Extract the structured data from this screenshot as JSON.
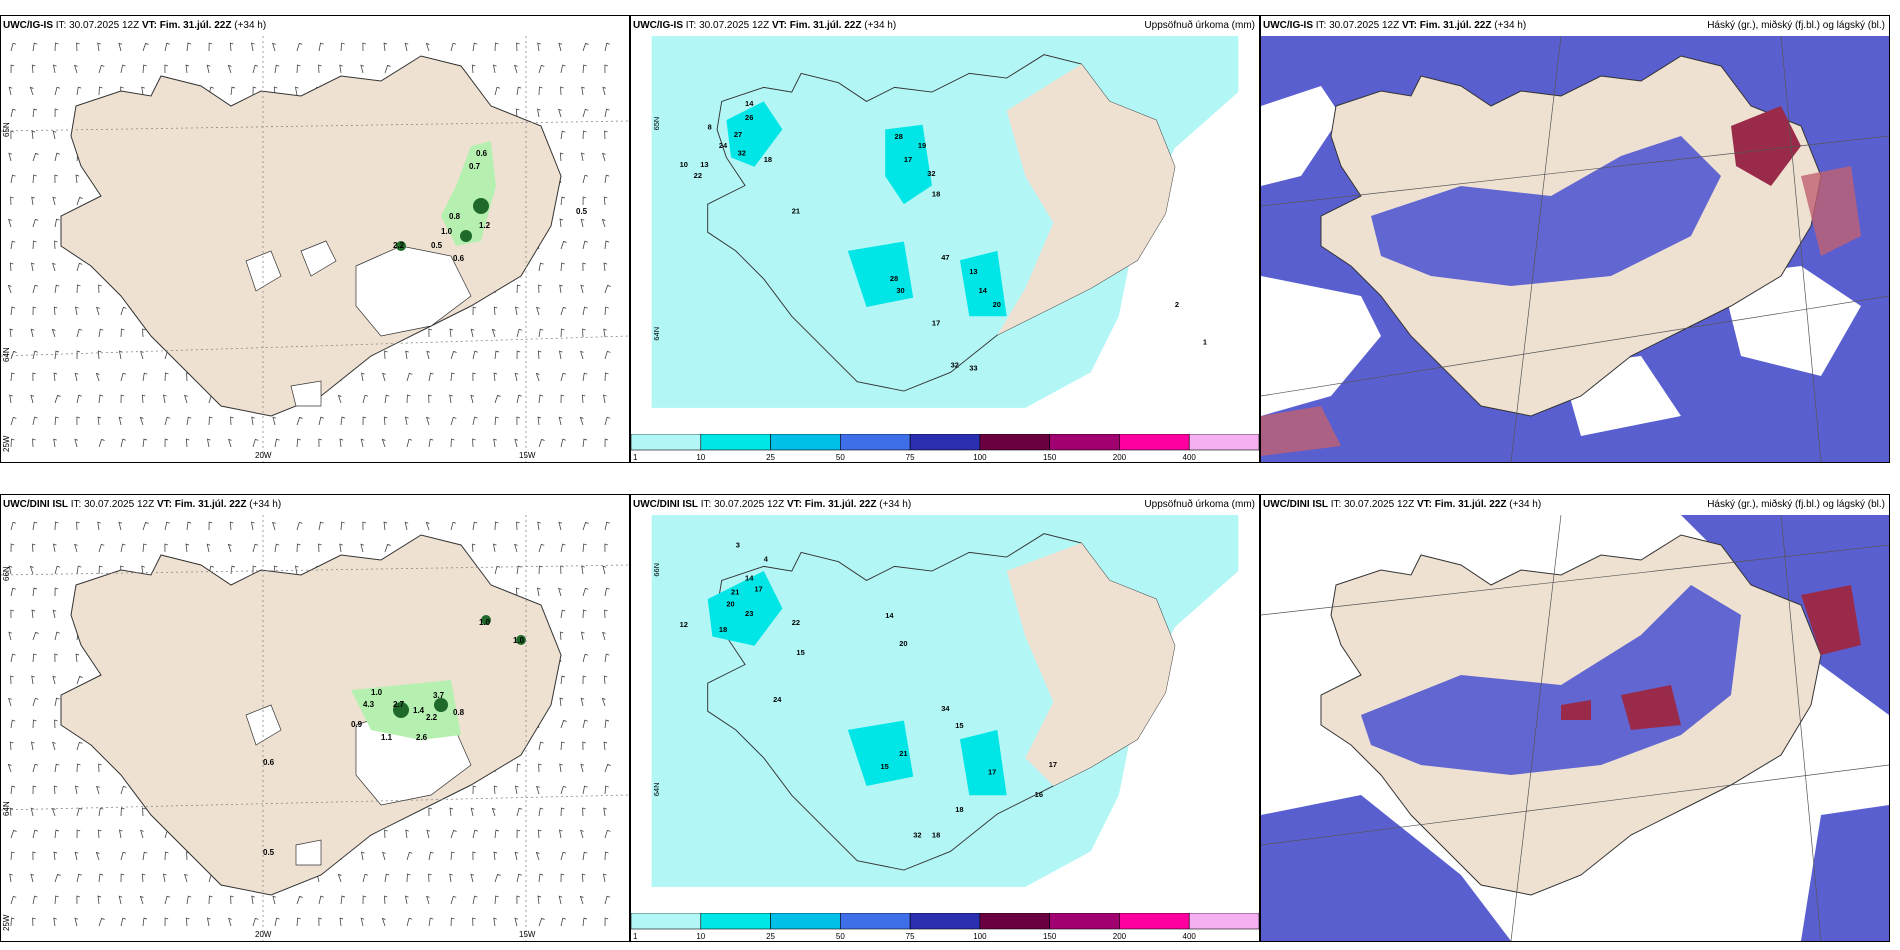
{
  "colors": {
    "land": "#efe1d2",
    "sea_precip": "#b3f6f6",
    "precip_10": "#00e6e6",
    "cloud_low": "#5a5fd0",
    "cloud_high": "#9a2a4a",
    "green_light": "#b6f0b0",
    "green_dark": "#1f6a2a"
  },
  "panels": [
    {
      "model": "UWC/IG-IS",
      "it_label": "IT:",
      "it_value": "30.07.2025 12Z",
      "vt_label": "VT:",
      "vt_value": "Fim. 31.júl. 22Z",
      "lead": "(+34 h)",
      "right_title": "",
      "lat_labels": [
        "65N",
        "64N",
        "25W"
      ],
      "lon_labels": [
        "20W",
        "15W"
      ],
      "values": [
        "0.6",
        "0.7",
        "0.8",
        "1.0",
        "1.2",
        "0.5",
        "0.6",
        "2.2",
        "0.5"
      ]
    },
    {
      "model": "UWC/IG-IS",
      "it_label": "IT:",
      "it_value": "30.07.2025 12Z",
      "vt_label": "VT:",
      "vt_value": "Fim. 31.júl. 22Z",
      "lead": "(+34 h)",
      "right_title": "Uppsöfnuð úrkoma (mm)",
      "lat_labels": [
        "65N",
        "64N"
      ],
      "values": [
        "8",
        "10",
        "14",
        "26",
        "27",
        "24",
        "32",
        "18",
        "13",
        "10",
        "22",
        "21",
        "15",
        "28",
        "19",
        "16",
        "17",
        "32",
        "18",
        "4",
        "5",
        "12",
        "28",
        "30",
        "47",
        "13",
        "14",
        "20",
        "17",
        "18",
        "19",
        "14",
        "32",
        "33",
        "3",
        "2",
        "1"
      ]
    },
    {
      "model": "UWC/IG-IS",
      "it_label": "IT:",
      "it_value": "30.07.2025 12Z",
      "vt_label": "VT:",
      "vt_value": "Fim. 31.júl. 22Z",
      "lead": "(+34 h)",
      "right_title": "Háský (gr.), miðský (fj.bl.) og lágský (bl.)"
    },
    {
      "model": "UWC/DINI ISL",
      "it_label": "IT:",
      "it_value": "30.07.2025 12Z",
      "vt_label": "VT:",
      "vt_value": "Fim. 31.júl. 22Z",
      "lead": "(+34 h)",
      "right_title": "",
      "lat_labels": [
        "66N",
        "64N",
        "25W"
      ],
      "lon_labels": [
        "20W",
        "15W"
      ],
      "values": [
        "1.0",
        "1.0",
        "1.0",
        "4.3",
        "2.7",
        "1.4",
        "3.7",
        "2.2",
        "0.9",
        "0.8",
        "1.1",
        "2.6",
        "0.6",
        "0.5"
      ]
    },
    {
      "model": "UWC/DINI ISL",
      "it_label": "IT:",
      "it_value": "30.07.2025 12Z",
      "vt_label": "VT:",
      "vt_value": "Fim. 31.júl. 22Z",
      "lead": "(+34 h)",
      "right_title": "Uppsöfnuð úrkoma (mm)",
      "lat_labels": [
        "66N",
        "64N"
      ],
      "values": [
        "3",
        "4",
        "12",
        "14",
        "17",
        "21",
        "20",
        "23",
        "18",
        "22",
        "13",
        "12",
        "15",
        "24",
        "13",
        "20",
        "14",
        "13",
        "34",
        "15",
        "17",
        "21",
        "15",
        "17",
        "18",
        "14",
        "32",
        "18",
        "16",
        "17"
      ]
    },
    {
      "model": "UWC/DINI ISL",
      "it_label": "IT:",
      "it_value": "30.07.2025 12Z",
      "vt_label": "VT:",
      "vt_value": "Fim. 31.júl. 22Z",
      "lead": "(+34 h)",
      "right_title": "Háský (gr.), miðský (fj.bl.) og lágský (bl.)"
    }
  ],
  "colorbar": {
    "ticks": [
      "1",
      "10",
      "25",
      "50",
      "75",
      "100",
      "150",
      "200",
      "400"
    ],
    "colors": [
      "#b3f6f6",
      "#00e6e6",
      "#00c0e8",
      "#3f6fe8",
      "#2a2fb0",
      "#6a0040",
      "#a00070",
      "#ff00a0",
      "#f4b0f0"
    ]
  }
}
